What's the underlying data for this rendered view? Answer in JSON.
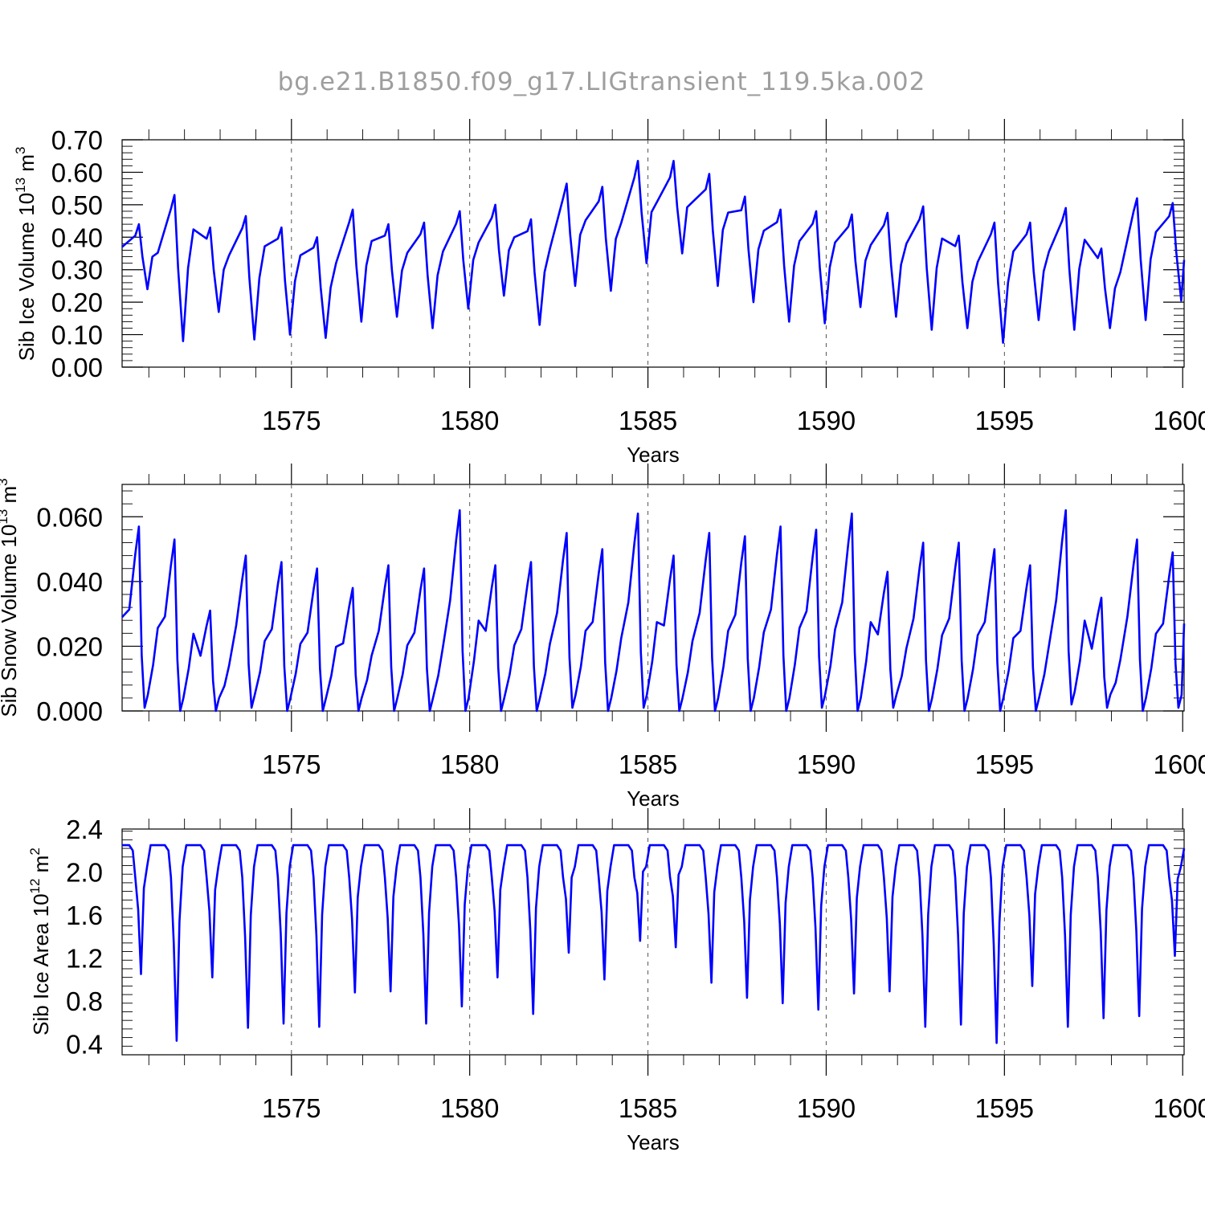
{
  "title": "bg.e21.B1850.f09_g17.LIGtransient_119.5ka.002",
  "chart_data": [
    {
      "type": "line",
      "ylabel": "Sib Ice Volume 10",
      "ylabel_exp": "13",
      "ylabel_unit": "m",
      "ylabel_unit_exp": "3",
      "xlabel": "Years",
      "xlim": [
        1570.25,
        1600.04
      ],
      "ylim": [
        0,
        0.7
      ],
      "yticks": [
        "0.00",
        "0.10",
        "0.20",
        "0.30",
        "0.40",
        "0.50",
        "0.60",
        "0.70"
      ],
      "xticks": [
        "1575",
        "1580",
        "1585",
        "1590",
        "1595",
        "1600"
      ],
      "peaks": [
        0.44,
        0.53,
        0.43,
        0.465,
        0.43,
        0.4,
        0.485,
        0.44,
        0.445,
        0.48,
        0.5,
        0.455,
        0.565,
        0.555,
        0.635,
        0.635,
        0.595,
        0.525,
        0.485,
        0.48,
        0.47,
        0.475,
        0.495,
        0.405,
        0.445,
        0.445,
        0.49,
        0.365,
        0.52,
        0.505
      ],
      "troughs": [
        0.24,
        0.08,
        0.17,
        0.085,
        0.1,
        0.09,
        0.14,
        0.155,
        0.12,
        0.18,
        0.22,
        0.13,
        0.25,
        0.235,
        0.32,
        0.35,
        0.25,
        0.2,
        0.14,
        0.135,
        0.185,
        0.155,
        0.115,
        0.12,
        0.075,
        0.145,
        0.115,
        0.12,
        0.145,
        0.205
      ],
      "start_value": 0.37,
      "end_value": 0.33
    },
    {
      "type": "line",
      "ylabel": "Sib Snow Volume 10",
      "ylabel_exp": "13",
      "ylabel_unit": "m",
      "ylabel_unit_exp": "3",
      "xlabel": "Years",
      "xlim": [
        1570.25,
        1600.04
      ],
      "ylim": [
        0,
        0.07
      ],
      "yticks": [
        "0.000",
        "0.020",
        "0.040",
        "0.060"
      ],
      "xticks": [
        "1575",
        "1580",
        "1585",
        "1590",
        "1595",
        "1600"
      ],
      "peaks": [
        0.057,
        0.053,
        0.031,
        0.048,
        0.046,
        0.044,
        0.038,
        0.045,
        0.044,
        0.062,
        0.045,
        0.046,
        0.055,
        0.05,
        0.061,
        0.048,
        0.055,
        0.054,
        0.057,
        0.056,
        0.061,
        0.043,
        0.052,
        0.052,
        0.05,
        0.045,
        0.062,
        0.035,
        0.053,
        0.049
      ],
      "troughs": [
        0.001,
        0.0,
        0.0,
        0.001,
        0.0,
        0.0,
        0.0,
        0.0,
        0.0,
        0.0,
        0.0,
        0.0,
        0.001,
        0.0,
        0.001,
        0.0,
        0.0,
        0.0,
        0.0,
        0.001,
        0.0,
        0.001,
        0.0,
        0.0,
        0.0,
        0.0,
        0.002,
        0.001,
        0.0,
        0.001
      ],
      "start_value": 0.029,
      "end_value": 0.027
    },
    {
      "type": "line",
      "ylabel": "Sib Ice Area 10",
      "ylabel_exp": "12",
      "ylabel_unit": "m",
      "ylabel_unit_exp": "2",
      "xlabel": "Years",
      "xlim": [
        1570.25,
        1600.04
      ],
      "ylim": [
        0.3,
        2.4
      ],
      "yticks": [
        "0.4",
        "0.8",
        "1.2",
        "1.6",
        "2.0",
        "2.4"
      ],
      "xticks": [
        "1575",
        "1580",
        "1585",
        "1590",
        "1595",
        "1600"
      ],
      "peaks": [
        2.25,
        2.25,
        2.25,
        2.25,
        2.25,
        2.25,
        2.25,
        2.25,
        2.25,
        2.25,
        2.25,
        2.25,
        2.25,
        2.25,
        2.25,
        2.25,
        2.25,
        2.25,
        2.25,
        2.25,
        2.25,
        2.25,
        2.25,
        2.25,
        2.25,
        2.25,
        2.25,
        2.25,
        2.25,
        2.25
      ],
      "troughs": [
        1.05,
        0.43,
        1.02,
        0.55,
        0.59,
        0.56,
        0.88,
        0.89,
        0.59,
        0.75,
        1.02,
        0.68,
        1.25,
        1.0,
        1.36,
        1.3,
        0.97,
        0.83,
        0.78,
        0.72,
        0.87,
        0.89,
        0.56,
        0.58,
        0.41,
        0.94,
        0.56,
        0.64,
        0.66,
        1.22
      ],
      "start_value": 2.25,
      "end_value": 2.22
    }
  ]
}
